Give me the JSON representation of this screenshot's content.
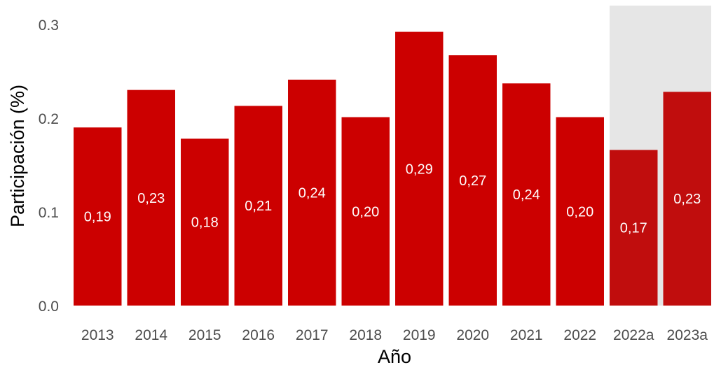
{
  "chart_data": {
    "type": "bar",
    "title": "",
    "xlabel": "Año",
    "ylabel": "Participación (%)",
    "ylim": [
      0,
      0.32
    ],
    "yticks": [
      0.0,
      0.1,
      0.2,
      0.3
    ],
    "ytick_labels": [
      "0.0",
      "0.1",
      "0.2",
      "0.3"
    ],
    "categories": [
      "2013",
      "2014",
      "2015",
      "2016",
      "2017",
      "2018",
      "2019",
      "2020",
      "2021",
      "2022",
      "2022a",
      "2023a"
    ],
    "values": [
      0.19,
      0.23,
      0.178,
      0.213,
      0.241,
      0.201,
      0.292,
      0.267,
      0.237,
      0.201,
      0.166,
      0.228
    ],
    "data_labels": [
      "0,19",
      "0,23",
      "0,18",
      "0,21",
      "0,24",
      "0,20",
      "0,29",
      "0,27",
      "0,24",
      "0,20",
      "0,17",
      "0,23"
    ],
    "highlight_categories": [
      "2022a",
      "2023a"
    ],
    "grid": false,
    "legend": "none",
    "colors": {
      "bar": "#cc0000",
      "bar_highlight": "#c00d0d",
      "highlight_band": "#e6e6e6",
      "bar_label": "#ffffff",
      "tick": "#4d4d4d"
    }
  }
}
